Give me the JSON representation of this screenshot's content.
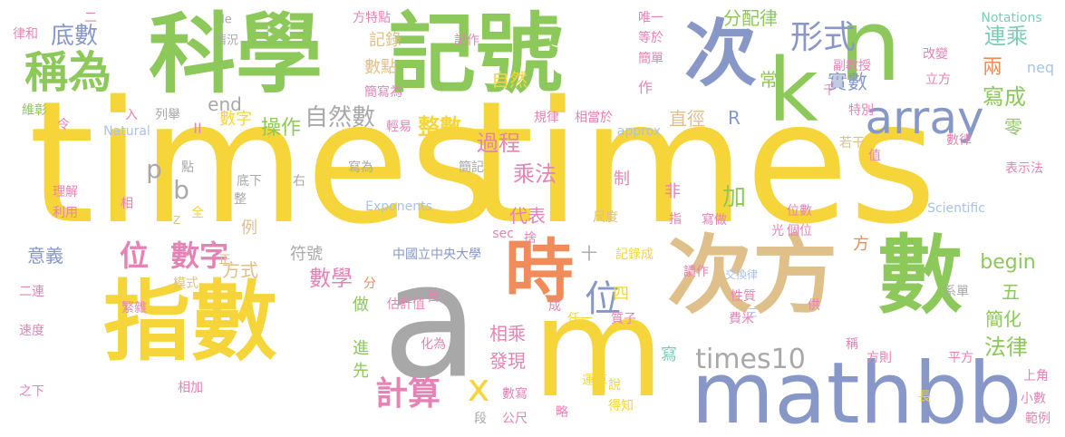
{
  "palette": {
    "yellow": "#f6d53a",
    "green": "#8dc85a",
    "blue": "#8797c8",
    "gray": "#a8a8a8",
    "tan": "#dfc08a",
    "orange": "#f08c5a",
    "pink": "#e583b5",
    "teal": "#7ccdb6",
    "lightblue": "#a9c3e6",
    "red": "#ee6a5c"
  },
  "words": [
    {
      "text": "times",
      "color": "yellow"
    },
    {
      "text": "times",
      "color": "yellow"
    },
    {
      "text": "科學",
      "color": "green"
    },
    {
      "text": "記號",
      "color": "green"
    },
    {
      "text": "指數",
      "color": "yellow"
    },
    {
      "text": "次方",
      "color": "tan"
    },
    {
      "text": "數",
      "color": "green"
    },
    {
      "text": "a",
      "color": "gray"
    },
    {
      "text": "m",
      "color": "yellow"
    },
    {
      "text": "mathbb",
      "color": "blue"
    },
    {
      "text": "次",
      "color": "blue"
    },
    {
      "text": "n",
      "color": "green"
    },
    {
      "text": "k",
      "color": "green"
    },
    {
      "text": "時",
      "color": "orange"
    },
    {
      "text": "稱為",
      "color": "green"
    },
    {
      "text": "array",
      "color": "blue"
    },
    {
      "text": "形式",
      "color": "blue"
    },
    {
      "text": "位",
      "color": "blue"
    },
    {
      "text": "計算",
      "color": "pink"
    },
    {
      "text": "x",
      "color": "yellow"
    },
    {
      "text": "times10",
      "color": "gray"
    },
    {
      "text": "數字",
      "color": "pink"
    },
    {
      "text": "位",
      "color": "pink"
    },
    {
      "text": "底數",
      "color": "blue"
    },
    {
      "text": "自然數",
      "color": "gray"
    },
    {
      "text": "整數",
      "color": "yellow"
    },
    {
      "text": "實數",
      "color": "blue"
    },
    {
      "text": "過程",
      "color": "pink"
    },
    {
      "text": "乘法",
      "color": "pink"
    },
    {
      "text": "數學",
      "color": "pink"
    },
    {
      "text": "連乘",
      "color": "teal"
    },
    {
      "text": "寫成",
      "color": "green"
    },
    {
      "text": "法律",
      "color": "green"
    },
    {
      "text": "begin",
      "color": "green"
    },
    {
      "text": "end",
      "color": "gray"
    },
    {
      "text": "方式",
      "color": "tan"
    },
    {
      "text": "操作",
      "color": "green"
    },
    {
      "text": "意義",
      "color": "blue"
    },
    {
      "text": "分配律",
      "color": "green"
    },
    {
      "text": "記錄",
      "color": "tan"
    },
    {
      "text": "數點",
      "color": "tan"
    },
    {
      "text": "自然",
      "color": "yellow"
    },
    {
      "text": "常",
      "color": "green"
    },
    {
      "text": "兩",
      "color": "orange"
    },
    {
      "text": "neq",
      "color": "lightblue"
    },
    {
      "text": "直徑",
      "color": "tan"
    },
    {
      "text": "R",
      "color": "blue"
    },
    {
      "text": "零",
      "color": "green"
    },
    {
      "text": "加",
      "color": "green"
    },
    {
      "text": "p",
      "color": "gray"
    },
    {
      "text": "b",
      "color": "gray"
    },
    {
      "text": "例",
      "color": "tan"
    },
    {
      "text": "符號",
      "color": "gray"
    },
    {
      "text": "代表",
      "color": "pink"
    },
    {
      "text": "相乘",
      "color": "pink"
    },
    {
      "text": "發現",
      "color": "pink"
    },
    {
      "text": "做",
      "color": "green"
    },
    {
      "text": "進",
      "color": "green"
    },
    {
      "text": "先",
      "color": "green"
    },
    {
      "text": "五",
      "color": "green"
    },
    {
      "text": "簡化",
      "color": "green"
    },
    {
      "text": "方",
      "color": "orange"
    },
    {
      "text": "寫",
      "color": "teal"
    },
    {
      "text": "十",
      "color": "gray"
    },
    {
      "text": "四",
      "color": "yellow"
    },
    {
      "text": "制",
      "color": "pink"
    },
    {
      "text": "非",
      "color": "pink"
    },
    {
      "text": "Notations",
      "color": "teal"
    },
    {
      "text": "Scientific",
      "color": "lightblue"
    },
    {
      "text": "Exponents",
      "color": "lightblue"
    },
    {
      "text": "Natural",
      "color": "lightblue"
    },
    {
      "text": "approx",
      "color": "lightblue"
    },
    {
      "text": "數字",
      "color": "yellow"
    },
    {
      "text": "中國立中央大學",
      "color": "blue"
    },
    {
      "text": "記錄成",
      "color": "yellow"
    },
    {
      "text": "估計值",
      "color": "pink"
    },
    {
      "text": "任一",
      "color": "yellow"
    },
    {
      "text": "質子",
      "color": "pink"
    },
    {
      "text": "費米",
      "color": "pink"
    },
    {
      "text": "系單",
      "color": "gray"
    },
    {
      "text": "性質",
      "color": "pink"
    },
    {
      "text": "位數",
      "color": "pink"
    },
    {
      "text": "個位",
      "color": "pink"
    },
    {
      "text": "寫做",
      "color": "pink"
    },
    {
      "text": "讀作",
      "color": "pink"
    },
    {
      "text": "交換律",
      "color": "lightblue"
    },
    {
      "text": "表示法",
      "color": "pink"
    },
    {
      "text": "數律",
      "color": "pink"
    },
    {
      "text": "若干",
      "color": "tan"
    },
    {
      "text": "副教授",
      "color": "pink"
    },
    {
      "text": "改變",
      "color": "pink"
    },
    {
      "text": "立方",
      "color": "pink"
    },
    {
      "text": "特別",
      "color": "pink"
    },
    {
      "text": "唯一",
      "color": "pink"
    },
    {
      "text": "等於",
      "color": "pink"
    },
    {
      "text": "簡單",
      "color": "pink"
    },
    {
      "text": "方特點",
      "color": "pink"
    },
    {
      "text": "記作",
      "color": "pink"
    },
    {
      "text": "簡寫為",
      "color": "pink"
    },
    {
      "text": "輕易",
      "color": "pink"
    },
    {
      "text": "規律",
      "color": "pink"
    },
    {
      "text": "相當於",
      "color": "pink"
    },
    {
      "text": "簡記",
      "color": "gray"
    },
    {
      "text": "寫為",
      "color": "gray"
    },
    {
      "text": "底下",
      "color": "gray"
    },
    {
      "text": "右",
      "color": "gray"
    },
    {
      "text": "點",
      "color": "gray"
    },
    {
      "text": "整",
      "color": "gray"
    },
    {
      "text": "全",
      "color": "yellow"
    },
    {
      "text": "Z",
      "color": "tan"
    },
    {
      "text": "正",
      "color": "tan"
    },
    {
      "text": "模式",
      "color": "tan"
    },
    {
      "text": "分",
      "color": "orange"
    },
    {
      "text": "百",
      "color": "pink"
    },
    {
      "text": "繁雜",
      "color": "pink"
    },
    {
      "text": "化為",
      "color": "pink"
    },
    {
      "text": "成",
      "color": "pink"
    },
    {
      "text": "數寫",
      "color": "pink"
    },
    {
      "text": "段",
      "color": "gray"
    },
    {
      "text": "公尺",
      "color": "pink"
    },
    {
      "text": "略",
      "color": "pink"
    },
    {
      "text": "運算",
      "color": "yellow"
    },
    {
      "text": "說",
      "color": "yellow"
    },
    {
      "text": "得知",
      "color": "yellow"
    },
    {
      "text": "長",
      "color": "yellow"
    },
    {
      "text": "方則",
      "color": "pink"
    },
    {
      "text": "平方",
      "color": "pink"
    },
    {
      "text": "稱",
      "color": "pink"
    },
    {
      "text": "供",
      "color": "pink"
    },
    {
      "text": "三",
      "color": "lightblue"
    },
    {
      "text": "上角",
      "color": "pink"
    },
    {
      "text": "小數",
      "color": "pink"
    },
    {
      "text": "範例",
      "color": "pink"
    },
    {
      "text": "le",
      "color": "gray"
    },
    {
      "text": "情況",
      "color": "gray"
    },
    {
      "text": "律和",
      "color": "pink"
    },
    {
      "text": "維彰",
      "color": "green"
    },
    {
      "text": "令",
      "color": "pink"
    },
    {
      "text": "入",
      "color": "pink"
    },
    {
      "text": "列舉",
      "color": "gray"
    },
    {
      "text": "II",
      "color": "pink"
    },
    {
      "text": "理解",
      "color": "pink"
    },
    {
      "text": "利用",
      "color": "pink"
    },
    {
      "text": "相",
      "color": "pink"
    },
    {
      "text": "二連",
      "color": "pink"
    },
    {
      "text": "速度",
      "color": "pink"
    },
    {
      "text": "之下",
      "color": "pink"
    },
    {
      "text": "相加",
      "color": "pink"
    },
    {
      "text": "sec",
      "color": "pink"
    },
    {
      "text": "捨",
      "color": "pink"
    },
    {
      "text": "光",
      "color": "pink"
    },
    {
      "text": "指",
      "color": "pink"
    },
    {
      "text": "尺度",
      "color": "tan"
    },
    {
      "text": "千",
      "color": "pink"
    },
    {
      "text": "作",
      "color": "pink"
    },
    {
      "text": "值",
      "color": "pink"
    },
    {
      "text": "二",
      "color": "pink"
    }
  ]
}
